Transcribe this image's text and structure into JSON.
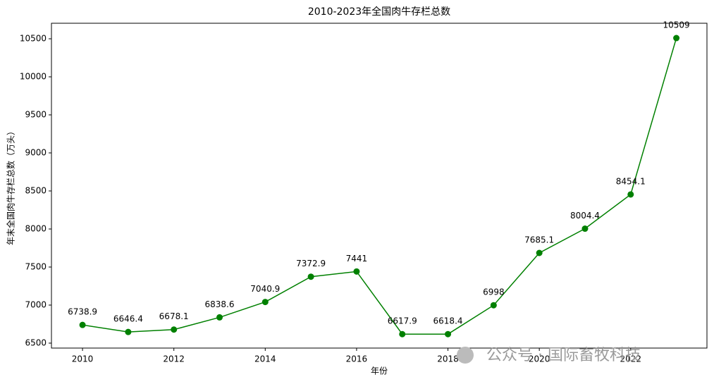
{
  "chart_data": {
    "type": "line",
    "title": "2010-2023年全国肉牛存栏总数",
    "x_label": "年份",
    "y_label": "年末全国肉牛存栏总数（万头）",
    "x": [
      2010,
      2011,
      2012,
      2013,
      2014,
      2015,
      2016,
      2017,
      2018,
      2019,
      2020,
      2021,
      2022,
      2023
    ],
    "series": [
      {
        "name": "肉牛存栏总数",
        "color": "#008000",
        "values": [
          6738.9,
          6646.4,
          6678.1,
          6838.6,
          7040.9,
          7372.9,
          7441,
          6617.9,
          6618.4,
          6998,
          7685.1,
          8004.4,
          8454.1,
          10509
        ]
      }
    ],
    "xlim": [
      2009.32,
      2023.67
    ],
    "xticks": [
      2010,
      2012,
      2014,
      2016,
      2018,
      2020,
      2022
    ],
    "ylim": [
      6435,
      10704
    ],
    "yticks": [
      6500,
      7000,
      7500,
      8000,
      8500,
      9000,
      9500,
      10000,
      10500
    ],
    "grid": false,
    "legend": false,
    "watermark": "公众号 · 国际畜牧科技"
  }
}
